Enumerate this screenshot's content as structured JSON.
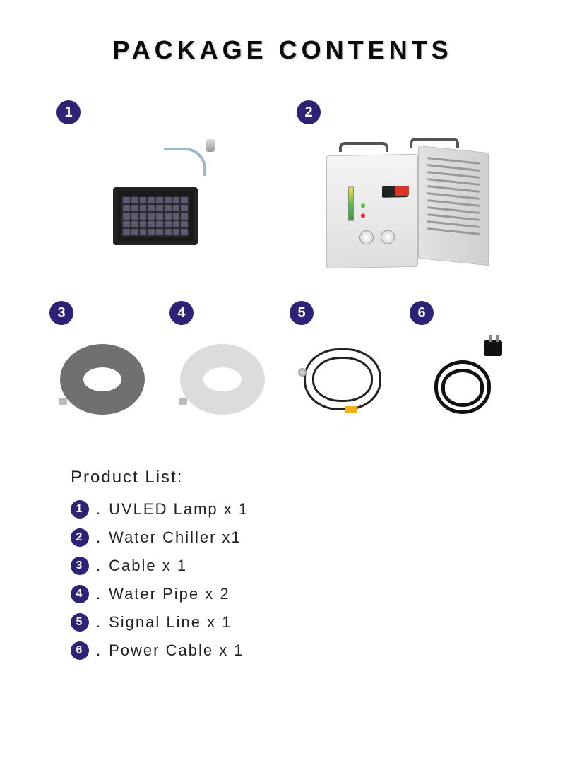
{
  "title": "PACKAGE CONTENTS",
  "badge_bg": "#2c2276",
  "badge_fg": "#ffffff",
  "items_top": [
    {
      "num": "1",
      "type": "lamp"
    },
    {
      "num": "2",
      "type": "chiller"
    }
  ],
  "items_bottom": [
    {
      "num": "3",
      "type": "coil_gray"
    },
    {
      "num": "4",
      "type": "coil_white"
    },
    {
      "num": "5",
      "type": "signal"
    },
    {
      "num": "6",
      "type": "power"
    }
  ],
  "coil_gray_color": "#707070",
  "coil_white_color": "#dcdcdc",
  "list_title": "Product List:",
  "list": [
    {
      "num": "1",
      "label": "UVLED Lamp x 1"
    },
    {
      "num": "2",
      "label": "Water Chiller x1"
    },
    {
      "num": "3",
      "label": "Cable x 1"
    },
    {
      "num": "4",
      "label": "Water Pipe x 2"
    },
    {
      "num": "5",
      "label": "Signal Line  x 1"
    },
    {
      "num": "6",
      "label": "Power Cable x 1"
    }
  ]
}
